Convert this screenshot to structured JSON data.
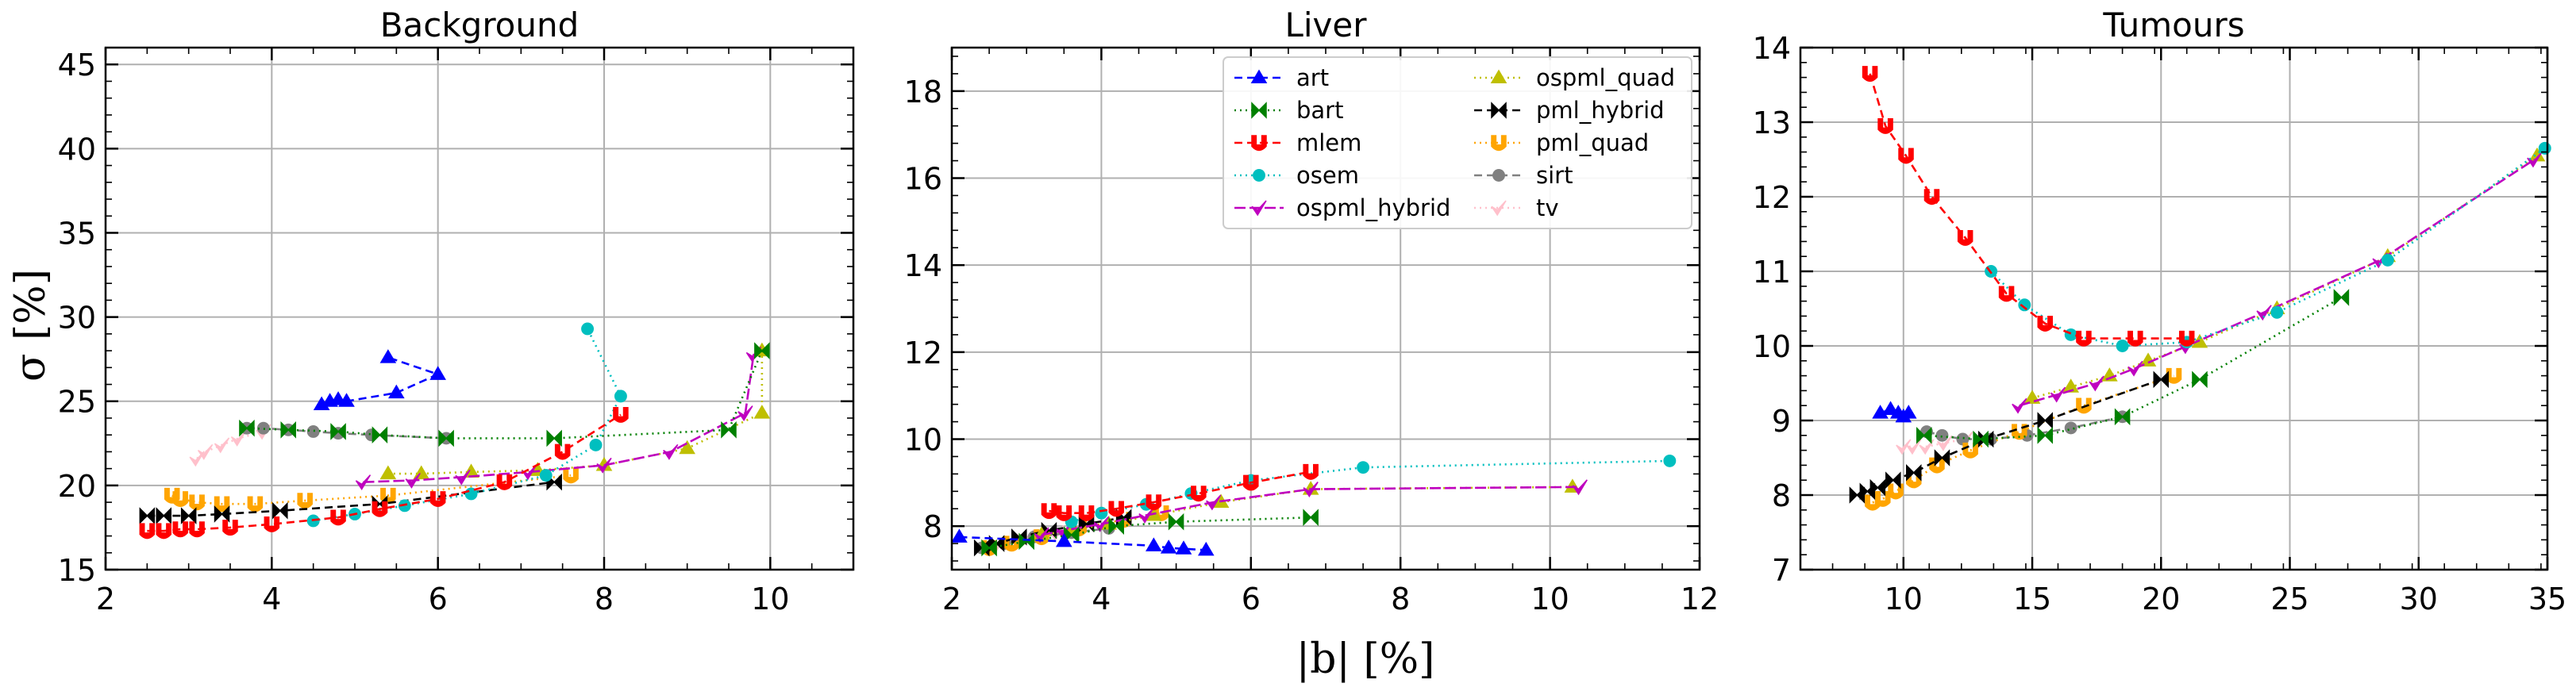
{
  "figure": {
    "ylabel": "σ [%]",
    "xlabel": "|b| [%]"
  },
  "chart_data": [
    {
      "type": "line",
      "title": "Background",
      "xlim": [
        2,
        11
      ],
      "ylim": [
        15,
        46
      ],
      "xticks": [
        2,
        4,
        6,
        8,
        10
      ],
      "yticks": [
        15,
        20,
        25,
        30,
        35,
        40,
        45
      ],
      "grid": true,
      "series": [
        {
          "name": "art",
          "x": [
            4.6,
            4.7,
            4.8,
            4.9,
            5.5,
            6.0,
            5.4
          ],
          "y": [
            24.8,
            25.0,
            25.1,
            25.0,
            25.5,
            26.6,
            27.6
          ]
        },
        {
          "name": "bart",
          "x": [
            3.7,
            4.2,
            4.8,
            5.3,
            6.1,
            7.4,
            9.5,
            9.9
          ],
          "y": [
            23.4,
            23.3,
            23.2,
            23.0,
            22.8,
            22.8,
            23.3,
            28.0
          ]
        },
        {
          "name": "mlem",
          "x": [
            2.5,
            2.7,
            2.9,
            3.1,
            3.5,
            4.0,
            4.8,
            5.3,
            6.0,
            6.8,
            7.5,
            8.2
          ],
          "y": [
            17.3,
            17.3,
            17.4,
            17.4,
            17.5,
            17.7,
            18.1,
            18.6,
            19.2,
            20.2,
            22.0,
            24.2
          ]
        },
        {
          "name": "osem",
          "x": [
            4.5,
            5.0,
            5.6,
            6.4,
            7.3,
            7.9,
            8.2,
            7.8
          ],
          "y": [
            17.9,
            18.3,
            18.8,
            19.5,
            20.6,
            22.4,
            25.3,
            29.3
          ]
        },
        {
          "name": "ospml_hybrid",
          "x": [
            5.1,
            5.7,
            6.3,
            7.1,
            8.0,
            8.8,
            9.7,
            9.8
          ],
          "y": [
            20.2,
            20.3,
            20.5,
            20.8,
            21.2,
            22.0,
            24.3,
            27.8
          ]
        },
        {
          "name": "ospml_quad",
          "x": [
            5.4,
            5.8,
            6.4,
            7.2,
            8.0,
            9.0,
            9.9,
            9.9
          ],
          "y": [
            20.7,
            20.7,
            20.8,
            20.9,
            21.2,
            22.2,
            24.3,
            28.0
          ]
        },
        {
          "name": "pml_hybrid",
          "x": [
            2.5,
            2.7,
            3.0,
            3.4,
            4.1,
            5.3,
            7.4
          ],
          "y": [
            18.2,
            18.2,
            18.2,
            18.3,
            18.5,
            18.9,
            20.2
          ]
        },
        {
          "name": "pml_quad",
          "x": [
            2.8,
            2.9,
            3.1,
            3.4,
            3.8,
            4.4,
            5.4,
            7.6
          ],
          "y": [
            19.4,
            19.2,
            19.0,
            18.9,
            18.9,
            19.1,
            19.4,
            20.6
          ]
        },
        {
          "name": "sirt",
          "x": [
            3.7,
            3.9,
            4.2,
            4.5,
            4.8,
            5.2,
            6.1
          ],
          "y": [
            23.4,
            23.4,
            23.3,
            23.2,
            23.1,
            23.0,
            22.8
          ]
        },
        {
          "name": "tv",
          "x": [
            3.1,
            3.2,
            3.4,
            3.6,
            3.9
          ],
          "y": [
            21.6,
            22.0,
            22.4,
            22.8,
            23.2
          ]
        }
      ]
    },
    {
      "type": "line",
      "title": "Liver",
      "xlim": [
        2,
        12
      ],
      "ylim": [
        7,
        19
      ],
      "xticks": [
        2,
        4,
        6,
        8,
        10,
        12
      ],
      "yticks": [
        8,
        10,
        12,
        14,
        16,
        18
      ],
      "grid": true,
      "legend": "top-center",
      "series": [
        {
          "name": "art",
          "x": [
            2.1,
            3.5,
            4.7,
            4.9,
            5.1,
            5.4
          ],
          "y": [
            7.75,
            7.65,
            7.55,
            7.5,
            7.48,
            7.45
          ]
        },
        {
          "name": "bart",
          "x": [
            2.5,
            3.0,
            3.6,
            4.2,
            5.0,
            6.8
          ],
          "y": [
            7.5,
            7.65,
            7.8,
            8.0,
            8.1,
            8.2
          ]
        },
        {
          "name": "mlem",
          "x": [
            3.3,
            3.5,
            3.8,
            4.2,
            4.7,
            5.3,
            6.0,
            6.8
          ],
          "y": [
            8.35,
            8.3,
            8.3,
            8.4,
            8.55,
            8.75,
            9.0,
            9.25
          ]
        },
        {
          "name": "osem",
          "x": [
            3.6,
            4.0,
            4.6,
            5.2,
            6.0,
            7.5,
            11.6
          ],
          "y": [
            8.1,
            8.3,
            8.5,
            8.75,
            9.05,
            9.35,
            9.5
          ]
        },
        {
          "name": "ospml_hybrid",
          "x": [
            3.2,
            3.5,
            4.0,
            4.6,
            5.5,
            6.8,
            10.4
          ],
          "y": [
            7.8,
            7.9,
            8.05,
            8.25,
            8.55,
            8.85,
            8.9
          ]
        },
        {
          "name": "ospml_quad",
          "x": [
            3.2,
            3.6,
            4.1,
            4.7,
            5.6,
            6.8,
            10.3
          ],
          "y": [
            7.8,
            7.9,
            8.05,
            8.25,
            8.55,
            8.85,
            8.9
          ]
        },
        {
          "name": "pml_hybrid",
          "x": [
            2.4,
            2.6,
            2.9,
            3.3,
            3.8,
            4.3
          ],
          "y": [
            7.5,
            7.6,
            7.75,
            7.9,
            8.05,
            8.2
          ]
        },
        {
          "name": "pml_quad",
          "x": [
            2.5,
            2.8,
            3.2,
            3.7,
            4.3,
            4.8
          ],
          "y": [
            7.5,
            7.6,
            7.75,
            7.95,
            8.15,
            8.3
          ]
        },
        {
          "name": "sirt",
          "x": [
            2.4,
            2.7,
            3.1,
            3.6,
            4.1
          ],
          "y": [
            7.5,
            7.6,
            7.75,
            7.85,
            7.95
          ]
        },
        {
          "name": "tv",
          "x": [
            2.6,
            2.8,
            3.0,
            3.2,
            3.4
          ],
          "y": [
            7.55,
            7.65,
            7.75,
            7.8,
            7.85
          ]
        }
      ]
    },
    {
      "type": "line",
      "title": "Tumours",
      "xlim": [
        6,
        35
      ],
      "ylim": [
        7,
        14
      ],
      "xticks": [
        10,
        15,
        20,
        25,
        30,
        35
      ],
      "yticks": [
        7,
        8,
        9,
        10,
        11,
        12,
        13,
        14
      ],
      "grid": true,
      "series": [
        {
          "name": "art",
          "x": [
            9.1,
            9.5,
            9.8,
            10.0,
            10.2
          ],
          "y": [
            9.1,
            9.15,
            9.1,
            9.05,
            9.1
          ]
        },
        {
          "name": "bart",
          "x": [
            10.8,
            13.0,
            15.5,
            18.5,
            21.5,
            27.0
          ],
          "y": [
            8.8,
            8.75,
            8.8,
            9.05,
            9.55,
            10.65
          ]
        },
        {
          "name": "mlem",
          "x": [
            8.7,
            9.3,
            10.1,
            11.1,
            12.4,
            14.0,
            15.5,
            17.0,
            19.0,
            21.0
          ],
          "y": [
            13.65,
            12.95,
            12.55,
            12.0,
            11.45,
            10.7,
            10.3,
            10.1,
            10.1,
            10.1
          ]
        },
        {
          "name": "osem",
          "x": [
            13.4,
            14.7,
            16.5,
            18.5,
            21.0,
            24.5,
            28.8,
            34.9
          ],
          "y": [
            11.0,
            10.55,
            10.15,
            10.0,
            10.05,
            10.45,
            11.15,
            12.65
          ]
        },
        {
          "name": "ospml_hybrid",
          "x": [
            14.5,
            16.0,
            17.5,
            19.0,
            21.0,
            24.0,
            28.5,
            34.5
          ],
          "y": [
            9.2,
            9.35,
            9.5,
            9.7,
            10.0,
            10.45,
            11.15,
            12.5
          ]
        },
        {
          "name": "ospml_quad",
          "x": [
            15.0,
            16.5,
            18.0,
            19.5,
            21.5,
            24.5,
            28.8,
            34.6
          ],
          "y": [
            9.3,
            9.45,
            9.6,
            9.8,
            10.05,
            10.5,
            11.2,
            12.55
          ]
        },
        {
          "name": "pml_hybrid",
          "x": [
            8.2,
            8.6,
            9.0,
            9.6,
            10.4,
            11.5,
            13.2,
            15.5,
            20.0
          ],
          "y": [
            8.0,
            8.05,
            8.1,
            8.2,
            8.3,
            8.5,
            8.75,
            9.0,
            9.55
          ]
        },
        {
          "name": "pml_quad",
          "x": [
            8.8,
            9.2,
            9.7,
            10.4,
            11.3,
            12.6,
            14.5,
            17.0,
            20.5
          ],
          "y": [
            7.9,
            7.95,
            8.05,
            8.2,
            8.4,
            8.6,
            8.85,
            9.2,
            9.6
          ]
        },
        {
          "name": "sirt",
          "x": [
            10.9,
            11.5,
            12.3,
            13.4,
            14.8,
            16.5,
            18.5
          ],
          "y": [
            8.85,
            8.8,
            8.75,
            8.75,
            8.8,
            8.9,
            9.05
          ]
        },
        {
          "name": "tv",
          "x": [
            10.0,
            10.4,
            10.9,
            11.6,
            12.4
          ],
          "y": [
            8.65,
            8.65,
            8.65,
            8.7,
            8.75
          ]
        }
      ]
    }
  ],
  "styles": {
    "art": {
      "color": "#0000ff",
      "dash": "10,6",
      "marker": "tri"
    },
    "bart": {
      "color": "#008000",
      "dash": "2,5",
      "marker": "bowtie"
    },
    "mlem": {
      "color": "#ff0000",
      "dash": "10,6",
      "marker": "cup"
    },
    "osem": {
      "color": "#00bfbf",
      "dash": "2,5",
      "marker": "dot"
    },
    "ospml_hybrid": {
      "color": "#bf00bf",
      "dash": "14,5",
      "marker": "check"
    },
    "ospml_quad": {
      "color": "#bfbf00",
      "dash": "2,5",
      "marker": "tri"
    },
    "pml_hybrid": {
      "color": "#000000",
      "dash": "10,6",
      "marker": "bowtie"
    },
    "pml_quad": {
      "color": "#ffa500",
      "dash": "2,5",
      "marker": "cup"
    },
    "sirt": {
      "color": "#808080",
      "dash": "10,6",
      "marker": "dot"
    },
    "tv": {
      "color": "#ffc0cb",
      "dash": "2,5",
      "marker": "check"
    }
  }
}
